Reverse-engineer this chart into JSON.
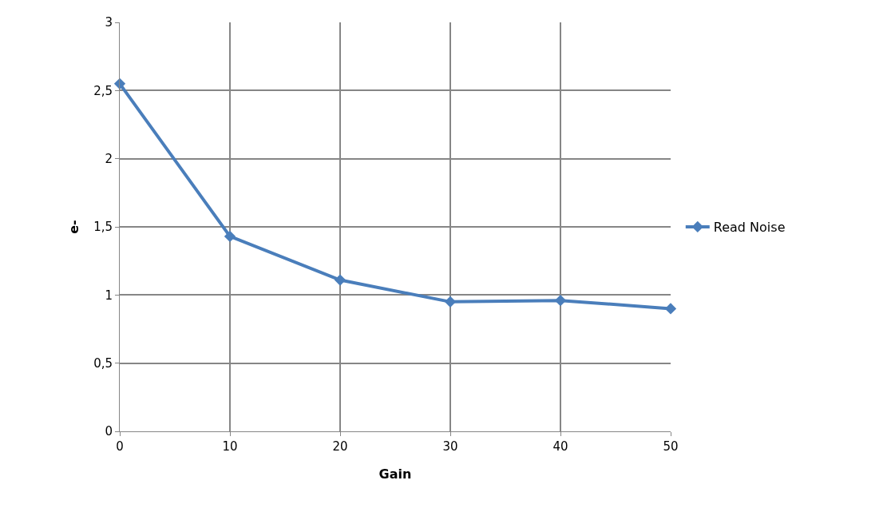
{
  "chart_data": {
    "type": "line",
    "xlabel": "Gain",
    "ylabel": "e-",
    "x": [
      0,
      10,
      20,
      30,
      40,
      50
    ],
    "series": [
      {
        "name": "Read Noise",
        "color": "#4a7ebb",
        "values": [
          2.55,
          1.43,
          1.11,
          0.95,
          0.96,
          0.9
        ]
      }
    ],
    "xlim": [
      0,
      50
    ],
    "xticks": [
      0,
      10,
      20,
      30,
      40,
      50
    ],
    "ylim": [
      0,
      3
    ],
    "yticks": [
      0,
      {
        "value": 0.5,
        "label": "0,5"
      },
      1,
      {
        "value": 1.5,
        "label": "1,5"
      },
      2,
      {
        "value": 2.5,
        "label": "2,5"
      },
      3
    ],
    "grid": true,
    "legend": "right",
    "marker": "diamond",
    "line_style": "solid"
  }
}
